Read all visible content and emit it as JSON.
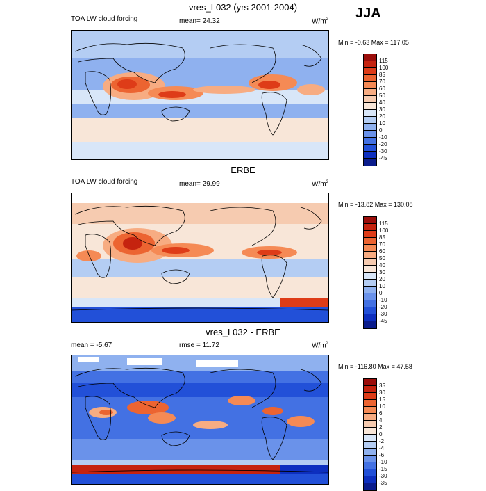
{
  "season": "JJA",
  "panels": [
    {
      "title": "vres_L032 (yrs 2001-2004)",
      "left_label": "TOA LW cloud forcing",
      "center_label": "mean=  24.32",
      "units": "W/m",
      "units_sup": "2",
      "minmax": "Min =  -0.63 Max = 117.05",
      "levels": [
        "115",
        "100",
        "85",
        "70",
        "60",
        "50",
        "40",
        "30",
        "20",
        "10",
        "0",
        "-10",
        "-20",
        "-30",
        "-45"
      ],
      "colors": [
        "#9b0d0a",
        "#c5230f",
        "#de3c18",
        "#ec6431",
        "#f58a55",
        "#f7ac82",
        "#f6cbb0",
        "#f8e6d8",
        "#d8e6f8",
        "#b4cdf3",
        "#8fb1ef",
        "#6a92ea",
        "#4371e3",
        "#2250d8",
        "#0d2fbf",
        "#0a1c8c"
      ],
      "bg": "#8fb1ef"
    },
    {
      "title": "ERBE",
      "left_label": "TOA LW cloud forcing",
      "center_label": "mean=  29.99",
      "units": "W/m",
      "units_sup": "2",
      "minmax": "Min = -13.82 Max = 130.08",
      "levels": [
        "115",
        "100",
        "85",
        "70",
        "60",
        "50",
        "40",
        "30",
        "20",
        "10",
        "0",
        "-10",
        "-20",
        "-30",
        "-45"
      ],
      "colors": [
        "#9b0d0a",
        "#c5230f",
        "#de3c18",
        "#ec6431",
        "#f58a55",
        "#f7ac82",
        "#f6cbb0",
        "#f8e6d8",
        "#d8e6f8",
        "#b4cdf3",
        "#8fb1ef",
        "#6a92ea",
        "#4371e3",
        "#2250d8",
        "#0d2fbf",
        "#0a1c8c"
      ],
      "bg": "#f8e6d8"
    },
    {
      "title": "vres_L032 - ERBE",
      "left_label": "mean =  -5.67",
      "center_label": "rmse =  11.72",
      "units": "W/m",
      "units_sup": "2",
      "minmax": "Min = -116.80 Max =  47.58",
      "levels": [
        "35",
        "30",
        "15",
        "10",
        "6",
        "4",
        "2",
        "0",
        "-2",
        "-4",
        "-6",
        "-10",
        "-15",
        "-30",
        "-35"
      ],
      "colors": [
        "#9b0d0a",
        "#c5230f",
        "#de3c18",
        "#ec6431",
        "#f58a55",
        "#f7ac82",
        "#f6cbb0",
        "#f8e6d8",
        "#d8e6f8",
        "#b4cdf3",
        "#8fb1ef",
        "#6a92ea",
        "#4371e3",
        "#2250d8",
        "#0d2fbf",
        "#0a1c8c"
      ],
      "bg": "#4371e3"
    }
  ]
}
